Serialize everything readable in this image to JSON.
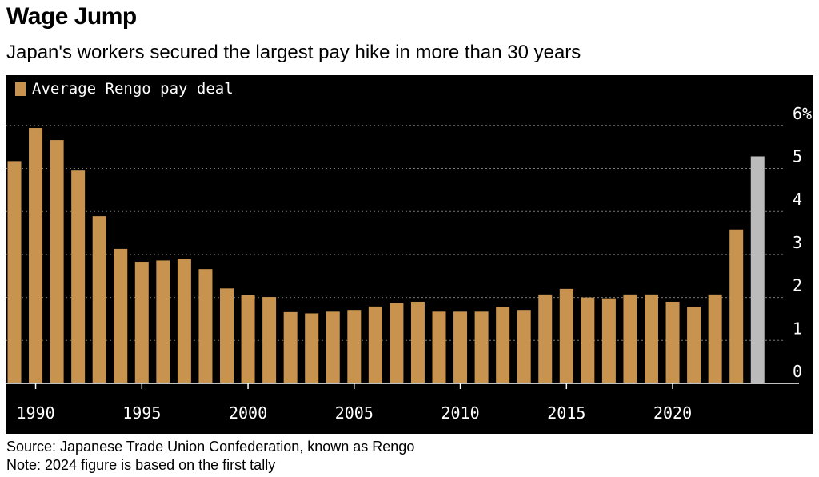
{
  "title": "Wage Jump",
  "subtitle": "Japan's workers secured the largest pay hike in more than 30 years",
  "source": "Source: Japanese Trade Union Confederation, known as Rengo",
  "note": "Note: 2024 figure is based on the first tally",
  "colors": {
    "bar": "#c8934f",
    "highlight": "#bbbbbb",
    "background": "#000000",
    "grid": "#777777",
    "text": "#ffffff"
  },
  "chart_data": {
    "type": "bar",
    "title": "Wage Jump",
    "subtitle": "Japan's workers secured the largest pay hike in more than 30 years",
    "series": [
      {
        "name": "Average Rengo pay deal"
      }
    ],
    "x": [
      1989,
      1990,
      1991,
      1992,
      1993,
      1994,
      1995,
      1996,
      1997,
      1998,
      1999,
      2000,
      2001,
      2002,
      2003,
      2004,
      2005,
      2006,
      2007,
      2008,
      2009,
      2010,
      2011,
      2012,
      2013,
      2014,
      2015,
      2016,
      2017,
      2018,
      2019,
      2020,
      2021,
      2022,
      2023,
      2024
    ],
    "values": [
      5.17,
      5.94,
      5.66,
      4.95,
      3.89,
      3.13,
      2.83,
      2.86,
      2.9,
      2.66,
      2.21,
      2.06,
      2.01,
      1.66,
      1.63,
      1.67,
      1.71,
      1.79,
      1.87,
      1.9,
      1.67,
      1.67,
      1.67,
      1.78,
      1.71,
      2.07,
      2.2,
      2.0,
      1.98,
      2.07,
      2.07,
      1.9,
      1.78,
      2.07,
      3.58,
      5.28
    ],
    "highlight_index": 35,
    "xticks": [
      "1990",
      "1995",
      "2000",
      "2005",
      "2010",
      "2015",
      "2020"
    ],
    "xtick_values": [
      1990,
      1995,
      2000,
      2005,
      2010,
      2015,
      2020
    ],
    "yticks": [
      "6%",
      "5",
      "4",
      "3",
      "2",
      "1",
      "0"
    ],
    "ytick_values": [
      6,
      5,
      4,
      3,
      2,
      1,
      0
    ],
    "ylim": [
      0,
      6
    ],
    "grid": true,
    "legend": "top-left",
    "xlabel": "",
    "ylabel": ""
  }
}
